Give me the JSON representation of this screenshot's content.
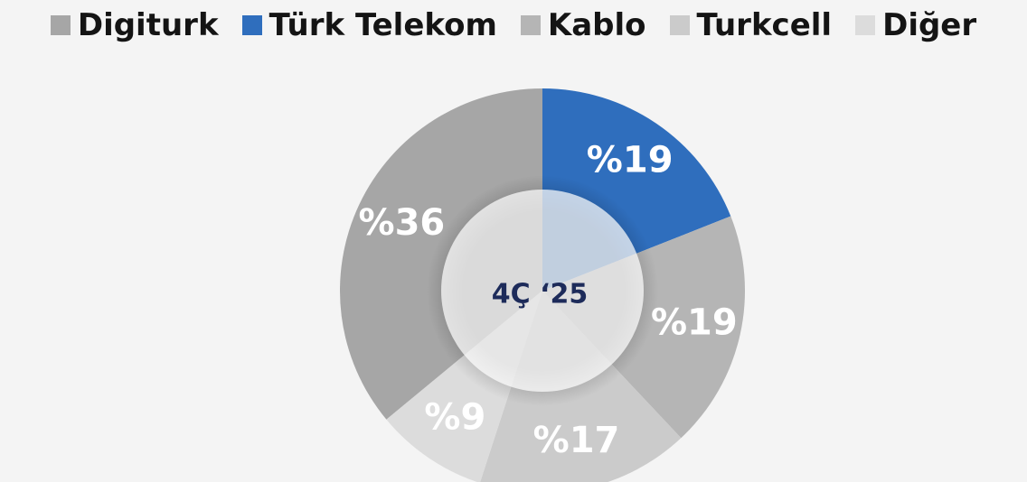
{
  "chart_data": {
    "type": "donut",
    "center_label": "4Ç ‘25",
    "categories": [
      "Digiturk",
      "Türk Telekom",
      "Kablo",
      "Turkcell",
      "Diğer"
    ],
    "values": [
      36,
      19,
      19,
      17,
      9
    ],
    "value_labels": [
      "%36",
      "%19",
      "%19",
      "%17",
      "%9"
    ],
    "colors": [
      "#a6a6a6",
      "#2f6ebd",
      "#b5b5b5",
      "#cbcbcb",
      "#dcdcdc"
    ],
    "legend": "top"
  }
}
